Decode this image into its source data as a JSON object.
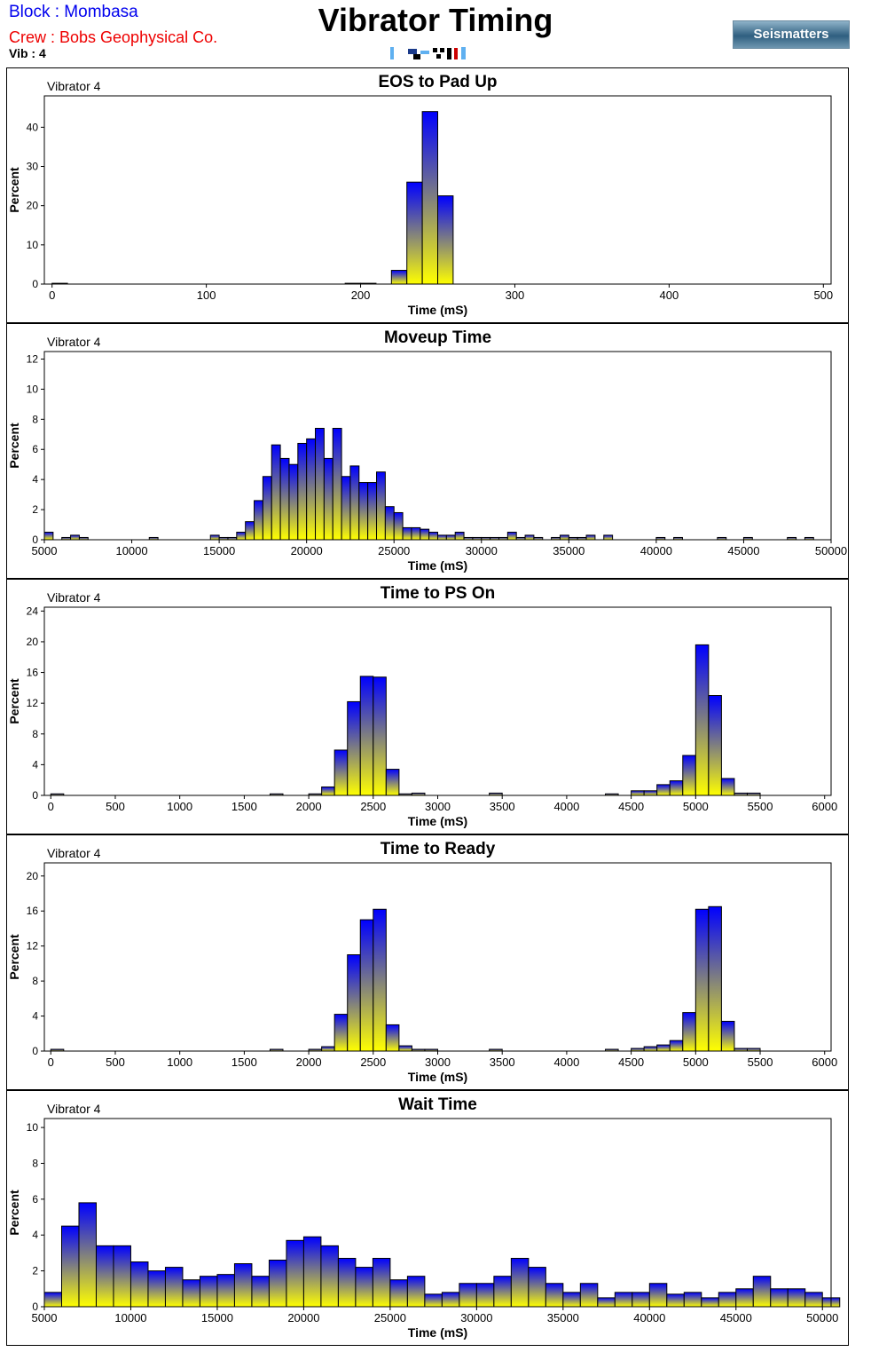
{
  "header": {
    "block": "Block : Mombasa",
    "crew": "Crew  : Bobs Geophysical Co.",
    "vib": "Vib   : 4",
    "title": "Vibrator Timing",
    "logo_text": "Seismatters"
  },
  "colors": {
    "bar_top": "#0000ff",
    "bar_bottom": "#ffff00",
    "frame": "#000000"
  },
  "chart_data": [
    {
      "type": "bar",
      "title": "EOS to Pad Up",
      "corner_label": "Vibrator 4",
      "xlabel": "Time (mS)",
      "ylabel": "Percent",
      "xlim": [
        -5,
        505
      ],
      "ylim": [
        0,
        48
      ],
      "xticks": [
        0,
        100,
        200,
        300,
        400,
        500
      ],
      "yticks": [
        0,
        10,
        20,
        30,
        40
      ],
      "grid": false,
      "bin_width": 10,
      "bins": [
        [
          0,
          0.2
        ],
        [
          190,
          0.2
        ],
        [
          200,
          0.2
        ],
        [
          220,
          3.5
        ],
        [
          230,
          26
        ],
        [
          240,
          44
        ],
        [
          250,
          22.5
        ]
      ]
    },
    {
      "type": "bar",
      "title": "Moveup Time",
      "corner_label": "Vibrator 4",
      "xlabel": "Time (mS)",
      "ylabel": "Percent",
      "xlim": [
        5000,
        50000
      ],
      "ylim": [
        0,
        12.5
      ],
      "xticks": [
        5000,
        10000,
        15000,
        20000,
        25000,
        30000,
        35000,
        40000,
        45000,
        50000
      ],
      "yticks": [
        0,
        2,
        4,
        6,
        8,
        10,
        12
      ],
      "grid": false,
      "bin_width": 500,
      "bins": [
        [
          5000,
          0.5
        ],
        [
          6000,
          0.15
        ],
        [
          6500,
          0.3
        ],
        [
          7000,
          0.15
        ],
        [
          11000,
          0.15
        ],
        [
          14500,
          0.3
        ],
        [
          15000,
          0.15
        ],
        [
          15500,
          0.15
        ],
        [
          16000,
          0.5
        ],
        [
          16500,
          1.2
        ],
        [
          17000,
          2.6
        ],
        [
          17500,
          4.2
        ],
        [
          18000,
          6.3
        ],
        [
          18500,
          5.4
        ],
        [
          19000,
          5
        ],
        [
          19500,
          6.4
        ],
        [
          20000,
          6.7
        ],
        [
          20500,
          7.4
        ],
        [
          21000,
          5.4
        ],
        [
          21500,
          7.4
        ],
        [
          22000,
          4.2
        ],
        [
          22500,
          4.9
        ],
        [
          23000,
          3.8
        ],
        [
          23500,
          3.8
        ],
        [
          24000,
          4.5
        ],
        [
          24500,
          2.2
        ],
        [
          25000,
          1.8
        ],
        [
          25500,
          0.8
        ],
        [
          26000,
          0.8
        ],
        [
          26500,
          0.7
        ],
        [
          27000,
          0.5
        ],
        [
          27500,
          0.3
        ],
        [
          28000,
          0.3
        ],
        [
          28500,
          0.5
        ],
        [
          29000,
          0.15
        ],
        [
          29500,
          0.15
        ],
        [
          30000,
          0.15
        ],
        [
          30500,
          0.15
        ],
        [
          31000,
          0.15
        ],
        [
          31500,
          0.5
        ],
        [
          32000,
          0.15
        ],
        [
          32500,
          0.3
        ],
        [
          33000,
          0.15
        ],
        [
          34000,
          0.15
        ],
        [
          34500,
          0.3
        ],
        [
          35000,
          0.15
        ],
        [
          35500,
          0.15
        ],
        [
          36000,
          0.3
        ],
        [
          37000,
          0.3
        ],
        [
          40000,
          0.15
        ],
        [
          41000,
          0.15
        ],
        [
          43500,
          0.15
        ],
        [
          45000,
          0.15
        ],
        [
          47500,
          0.15
        ],
        [
          48500,
          0.15
        ]
      ]
    },
    {
      "type": "bar",
      "title": "Time to PS On",
      "corner_label": "Vibrator 4",
      "xlabel": "Time (mS)",
      "ylabel": "Percent",
      "xlim": [
        -50,
        6050
      ],
      "ylim": [
        0,
        24.5
      ],
      "xticks": [
        0,
        500,
        1000,
        1500,
        2000,
        2500,
        3000,
        3500,
        4000,
        4500,
        5000,
        5500,
        6000
      ],
      "yticks": [
        0,
        4,
        8,
        12,
        16,
        20,
        24
      ],
      "grid": false,
      "bin_width": 100,
      "bins": [
        [
          0,
          0.2
        ],
        [
          1700,
          0.2
        ],
        [
          2000,
          0.2
        ],
        [
          2100,
          1.1
        ],
        [
          2200,
          5.9
        ],
        [
          2300,
          12.2
        ],
        [
          2400,
          15.5
        ],
        [
          2500,
          15.4
        ],
        [
          2600,
          3.4
        ],
        [
          2700,
          0.2
        ],
        [
          2800,
          0.3
        ],
        [
          3400,
          0.3
        ],
        [
          4300,
          0.2
        ],
        [
          4500,
          0.6
        ],
        [
          4600,
          0.6
        ],
        [
          4700,
          1.4
        ],
        [
          4800,
          1.9
        ],
        [
          4900,
          5.2
        ],
        [
          5000,
          19.6
        ],
        [
          5100,
          13
        ],
        [
          5200,
          2.2
        ],
        [
          5300,
          0.3
        ],
        [
          5400,
          0.3
        ]
      ]
    },
    {
      "type": "bar",
      "title": "Time to Ready",
      "corner_label": "Vibrator 4",
      "xlabel": "Time (mS)",
      "ylabel": "Percent",
      "xlim": [
        -50,
        6050
      ],
      "ylim": [
        0,
        21.5
      ],
      "xticks": [
        0,
        500,
        1000,
        1500,
        2000,
        2500,
        3000,
        3500,
        4000,
        4500,
        5000,
        5500,
        6000
      ],
      "yticks": [
        0,
        4,
        8,
        12,
        16,
        20
      ],
      "grid": false,
      "bin_width": 100,
      "bins": [
        [
          0,
          0.2
        ],
        [
          1700,
          0.2
        ],
        [
          2000,
          0.2
        ],
        [
          2100,
          0.5
        ],
        [
          2200,
          4.2
        ],
        [
          2300,
          11
        ],
        [
          2400,
          15
        ],
        [
          2500,
          16.2
        ],
        [
          2600,
          3
        ],
        [
          2700,
          0.6
        ],
        [
          2800,
          0.2
        ],
        [
          2900,
          0.2
        ],
        [
          3400,
          0.2
        ],
        [
          4300,
          0.2
        ],
        [
          4500,
          0.3
        ],
        [
          4600,
          0.5
        ],
        [
          4700,
          0.7
        ],
        [
          4800,
          1.2
        ],
        [
          4900,
          4.4
        ],
        [
          5000,
          16.2
        ],
        [
          5100,
          16.5
        ],
        [
          5200,
          3.4
        ],
        [
          5300,
          0.3
        ],
        [
          5400,
          0.3
        ]
      ]
    },
    {
      "type": "bar",
      "title": "Wait Time",
      "corner_label": "Vibrator 4",
      "xlabel": "Time (mS)",
      "ylabel": "Percent",
      "xlim": [
        5000,
        50500
      ],
      "ylim": [
        0,
        10.5
      ],
      "xticks": [
        5000,
        10000,
        15000,
        20000,
        25000,
        30000,
        35000,
        40000,
        45000,
        50000
      ],
      "yticks": [
        0,
        2,
        4,
        6,
        8,
        10
      ],
      "grid": false,
      "bin_width": 1000,
      "bins": [
        [
          5000,
          0.8
        ],
        [
          6000,
          4.5
        ],
        [
          7000,
          5.8
        ],
        [
          8000,
          3.4
        ],
        [
          9000,
          3.4
        ],
        [
          10000,
          2.5
        ],
        [
          11000,
          2
        ],
        [
          12000,
          2.2
        ],
        [
          13000,
          1.5
        ],
        [
          14000,
          1.7
        ],
        [
          15000,
          1.8
        ],
        [
          16000,
          2.4
        ],
        [
          17000,
          1.7
        ],
        [
          18000,
          2.6
        ],
        [
          19000,
          3.7
        ],
        [
          20000,
          3.9
        ],
        [
          21000,
          3.4
        ],
        [
          22000,
          2.7
        ],
        [
          23000,
          2.2
        ],
        [
          24000,
          2.7
        ],
        [
          25000,
          1.5
        ],
        [
          26000,
          1.7
        ],
        [
          27000,
          0.7
        ],
        [
          28000,
          0.8
        ],
        [
          29000,
          1.3
        ],
        [
          30000,
          1.3
        ],
        [
          31000,
          1.7
        ],
        [
          32000,
          2.7
        ],
        [
          33000,
          2.2
        ],
        [
          34000,
          1.3
        ],
        [
          35000,
          0.8
        ],
        [
          36000,
          1.3
        ],
        [
          37000,
          0.5
        ],
        [
          38000,
          0.8
        ],
        [
          39000,
          0.8
        ],
        [
          40000,
          1.3
        ],
        [
          41000,
          0.7
        ],
        [
          42000,
          0.8
        ],
        [
          43000,
          0.5
        ],
        [
          44000,
          0.8
        ],
        [
          45000,
          1
        ],
        [
          46000,
          1.7
        ],
        [
          47000,
          1
        ],
        [
          48000,
          1
        ],
        [
          49000,
          0.8
        ],
        [
          50000,
          0.5
        ]
      ]
    }
  ]
}
